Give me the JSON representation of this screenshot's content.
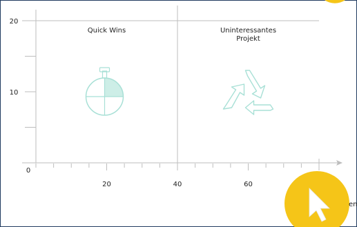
{
  "chart_data": {
    "type": "scatter",
    "title": "",
    "xlabel": "",
    "ylabel": "",
    "xlim": [
      0,
      80
    ],
    "ylim": [
      0,
      20
    ],
    "x_ticks": [
      20,
      40,
      60
    ],
    "y_ticks": [
      10,
      20
    ],
    "origin_label": "0",
    "divider_x": 40,
    "quadrants": [
      {
        "title_lines": [
          "Quick Wins"
        ],
        "icon": "stopwatch-icon",
        "x": 20,
        "y": 20
      },
      {
        "title_lines": [
          "Uninteressantes",
          "Projekt"
        ],
        "icon": "recycle-icon",
        "x": 60,
        "y": 20
      }
    ],
    "partial_label": "en"
  },
  "colors": {
    "axis": "#bdbdbd",
    "frame": "#1f3a5f",
    "icon": "#a8e0d6",
    "icon_fill": "#cdeee7",
    "badge": "#f5c518",
    "cursor": "#ffffff"
  },
  "overlay": {
    "icon": "cursor-icon",
    "badge_icon": "yellow-badge"
  }
}
